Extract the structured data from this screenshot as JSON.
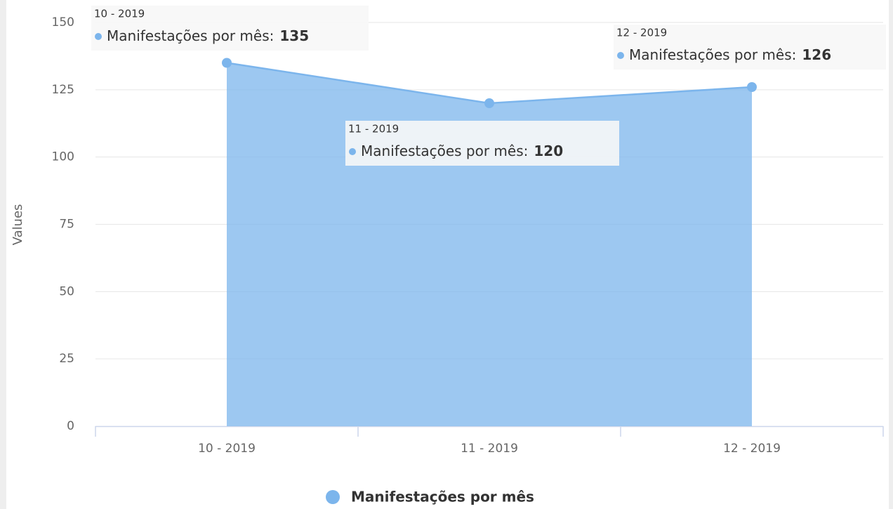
{
  "chart_data": {
    "type": "area",
    "categories": [
      "10 - 2019",
      "11 - 2019",
      "12 - 2019"
    ],
    "series": [
      {
        "name": "Manifestações por mês",
        "color": "#7cb5ec",
        "values": [
          135,
          120,
          126
        ]
      }
    ],
    "ylabel": "Values",
    "tooltip_label": "Manifestações por mês:",
    "ylim": [
      0,
      150
    ],
    "yticks": [
      0,
      25,
      50,
      75,
      100,
      125,
      150
    ],
    "grid": true,
    "legend": "bottom"
  }
}
